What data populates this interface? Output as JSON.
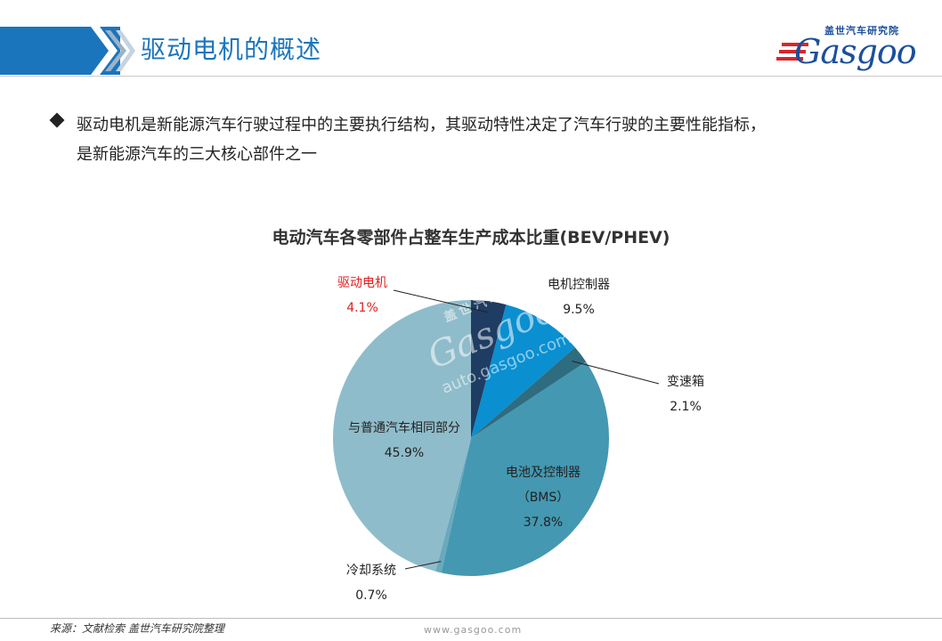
{
  "header": {
    "title": "驱动电机的概述",
    "accent_color": "#1b75bc"
  },
  "logo": {
    "cn": "盖世汽车研究院",
    "en": "Gasgoo"
  },
  "bullet": {
    "line1": "驱动电机是新能源汽车行驶过程中的主要执行结构，其驱动特性决定了汽车行驶的主要性能指标，",
    "line2": "是新能源汽车的三大核心部件之一"
  },
  "chart_data": {
    "type": "pie",
    "title": "电动汽车各零部件占整车生产成本比重(BEV/PHEV)",
    "start_angle_deg": 0,
    "direction": "clockwise",
    "slices": [
      {
        "label": "驱动电机",
        "value": 4.1,
        "value_label": "4.1%",
        "color": "#1f3c63",
        "label_color": "#e02020"
      },
      {
        "label": "电机控制器",
        "value": 9.5,
        "value_label": "9.5%",
        "color": "#0a8fd1",
        "label_color": "#222222"
      },
      {
        "label": "变速箱",
        "value": 2.1,
        "value_label": "2.1%",
        "color": "#2e6c80",
        "label_color": "#222222"
      },
      {
        "label": "电池及控制器",
        "label2": "（BMS）",
        "value": 37.8,
        "value_label": "37.8%",
        "color": "#4498b1",
        "label_color": "#222222"
      },
      {
        "label": "冷却系统",
        "value": 0.7,
        "value_label": "0.7%",
        "color": "#6aa9bb",
        "label_color": "#222222"
      },
      {
        "label": "与普通汽车相同部分",
        "value": 45.9,
        "value_label": "45.9%",
        "color": "#8fbcca",
        "label_color": "#222222"
      }
    ]
  },
  "watermark": {
    "cn": "盖世汽车",
    "logo": "Gasgoo",
    "url": "auto.gasgoo.com"
  },
  "footer": {
    "source": "来源：文献检索  盖世汽车研究院整理",
    "url": "www.gasgoo.com"
  }
}
